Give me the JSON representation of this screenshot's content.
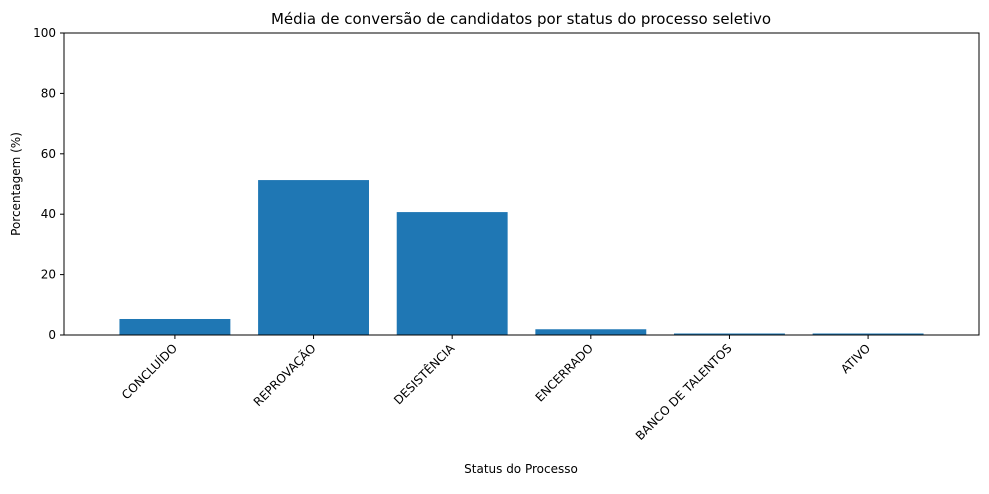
{
  "chart_data": {
    "type": "bar",
    "title": "Média de conversão de candidatos por status do processo seletivo",
    "xlabel": "Status do Processo",
    "ylabel": "Porcentagem (%)",
    "categories": [
      "CONCLUÍDO",
      "REPROVAÇÃO",
      "DESISTÊNCIA",
      "ENCERRADO",
      "BANCO DE TALENTOS",
      "ATIVO"
    ],
    "values": [
      5.3,
      51.3,
      40.7,
      1.9,
      0.5,
      0.5
    ],
    "ylim": [
      0,
      100
    ],
    "yticks": [
      0,
      20,
      40,
      60,
      80,
      100
    ],
    "grid": false,
    "bar_color": "#1f77b4"
  }
}
